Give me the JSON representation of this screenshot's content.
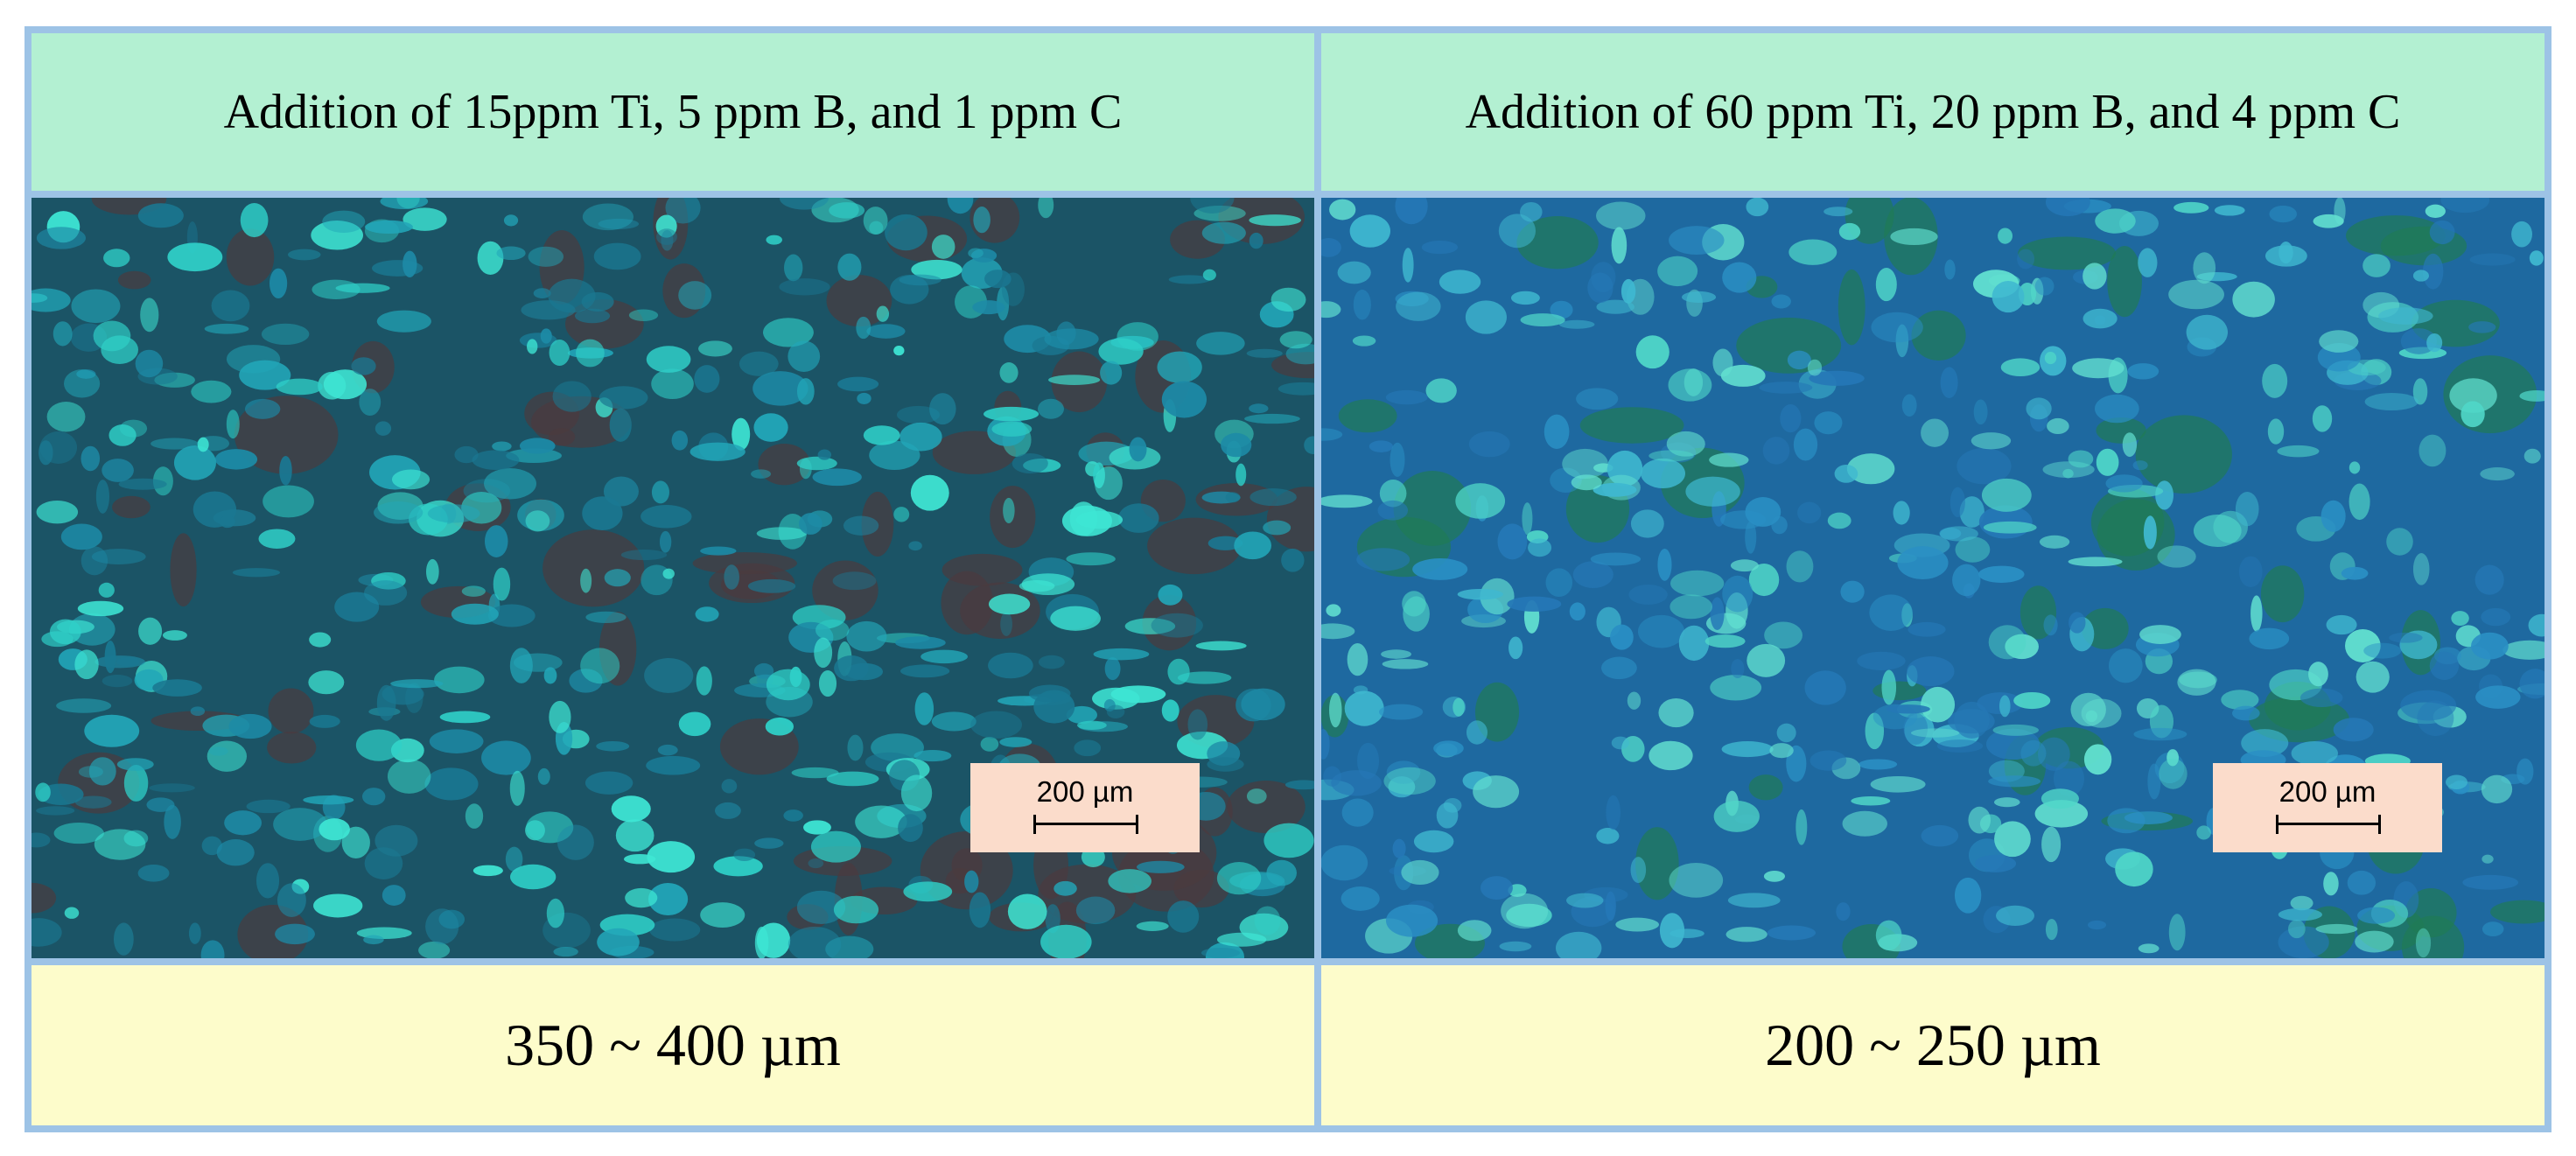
{
  "panels": [
    {
      "header": "Addition of 15ppm Ti, 5 ppm B, and 1 ppm C",
      "scale_bar": "200 µm",
      "grain_size": "350 ~ 400 µm"
    },
    {
      "header": "Addition of 60 ppm Ti, 20 ppm B, and 4 ppm C",
      "scale_bar": "200 µm",
      "grain_size": "200 ~ 250 µm"
    }
  ]
}
